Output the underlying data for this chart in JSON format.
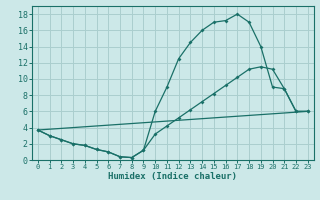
{
  "xlabel": "Humidex (Indice chaleur)",
  "ylabel": "",
  "bg_color": "#cce8e8",
  "grid_color": "#aacece",
  "line_color": "#1a7068",
  "xlim": [
    -0.5,
    23.5
  ],
  "ylim": [
    0,
    19
  ],
  "xticks": [
    0,
    1,
    2,
    3,
    4,
    5,
    6,
    7,
    8,
    9,
    10,
    11,
    12,
    13,
    14,
    15,
    16,
    17,
    18,
    19,
    20,
    21,
    22,
    23
  ],
  "yticks": [
    0,
    2,
    4,
    6,
    8,
    10,
    12,
    14,
    16,
    18
  ],
  "curve1_x": [
    0,
    1,
    2,
    3,
    4,
    5,
    6,
    7,
    8,
    9,
    10,
    11,
    12,
    13,
    14,
    15,
    16,
    17,
    18,
    19,
    20,
    21,
    22,
    23
  ],
  "curve1_y": [
    3.7,
    3.0,
    2.5,
    2.0,
    1.8,
    1.3,
    1.0,
    0.4,
    0.3,
    1.2,
    6.0,
    9.0,
    12.5,
    14.5,
    16.0,
    17.0,
    17.2,
    18.0,
    17.0,
    14.0,
    9.0,
    8.8,
    6.0,
    6.0
  ],
  "curve2_x": [
    0,
    1,
    2,
    3,
    4,
    5,
    6,
    7,
    8,
    9,
    10,
    11,
    12,
    13,
    14,
    15,
    16,
    17,
    18,
    19,
    20,
    21,
    22,
    23
  ],
  "curve2_y": [
    3.7,
    3.0,
    2.5,
    2.0,
    1.8,
    1.3,
    1.0,
    0.4,
    0.3,
    1.2,
    3.2,
    4.2,
    5.2,
    6.2,
    7.2,
    8.2,
    9.2,
    10.2,
    11.2,
    11.5,
    11.2,
    8.8,
    6.0,
    6.0
  ],
  "curve3_x": [
    0,
    23
  ],
  "curve3_y": [
    3.7,
    6.0
  ],
  "xlabel_fontsize": 6.5,
  "tick_fontsize_x": 5.0,
  "tick_fontsize_y": 6.0
}
